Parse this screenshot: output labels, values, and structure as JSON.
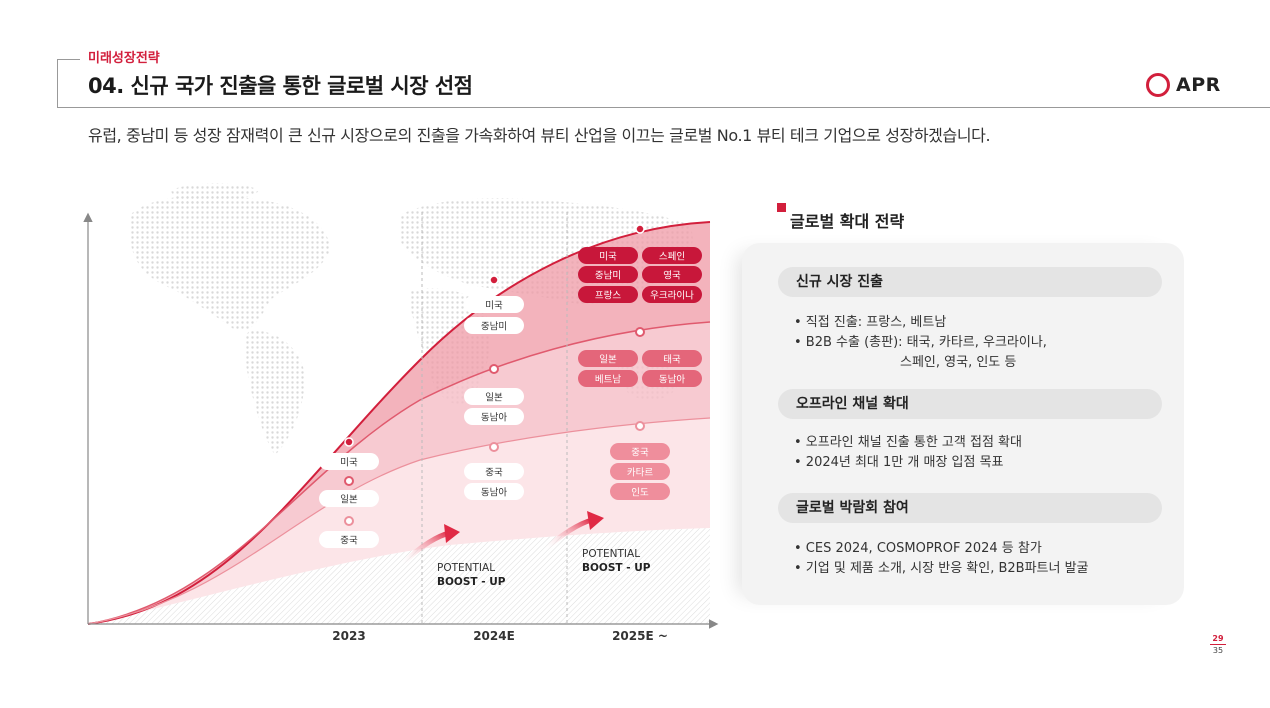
{
  "header": {
    "section": "미래성장전략",
    "title": "04. 신규 국가 진출을 통한 글로벌 시장 선점",
    "subtitle": "유럽, 중남미 등 성장 잠재력이 큰 신규 시장으로의 진출을 가속화하여 뷰티 산업을 이끄는 글로벌 No.1 뷰티 테크 기업으로 성장하겠습니다."
  },
  "logo": {
    "text": "APR"
  },
  "chart": {
    "x_labels": [
      "2023",
      "2024E",
      "2025E ~"
    ],
    "boost": [
      {
        "line1": "POTENTIAL",
        "line2": "BOOST - UP"
      },
      {
        "line1": "POTENTIAL",
        "line2": "BOOST - UP"
      }
    ],
    "tags_2023": [
      "미국",
      "일본",
      "중국"
    ],
    "tags_2024_top": [
      "미국",
      "중남미"
    ],
    "tags_2024_mid": [
      "일본",
      "동남아"
    ],
    "tags_2024_low": [
      "중국",
      "동남아"
    ],
    "tags_2025_top": [
      "미국",
      "스페인",
      "중남미",
      "영국",
      "프랑스",
      "우크라이나"
    ],
    "tags_2025_mid": [
      "일본",
      "태국",
      "베트남",
      "동남아"
    ],
    "tags_2025_low": [
      "중국",
      "카타르",
      "인도"
    ]
  },
  "panel": {
    "title": "글로벌 확대 전략",
    "sections": [
      {
        "heading": "신규 시장 진출",
        "bullets": [
          "•  직접 진출: 프랑스, 베트남",
          "•  B2B 수출 (총판): 태국, 카타르, 우크라이나,"
        ],
        "continuation": "스페인, 영국, 인도 등"
      },
      {
        "heading": "오프라인 채널 확대",
        "bullets": [
          "•  오프라인 채널 진출 통한 고객 접점 확대",
          "•  2024년 최대 1만 개 매장 입점 목표"
        ]
      },
      {
        "heading": "글로벌 박람회 참여",
        "bullets": [
          "•  CES 2024, COSMOPROF 2024 등 참가",
          "•  기업 및 제품 소개, 시장 반응 확인, B2B파트너 발굴"
        ]
      }
    ]
  },
  "page": {
    "current": "29",
    "total": "35"
  },
  "colors": {
    "accent": "#d21f3c",
    "band1": "#ef9aa6",
    "band2": "#f6c3ca",
    "band3": "#fbe3e6"
  }
}
